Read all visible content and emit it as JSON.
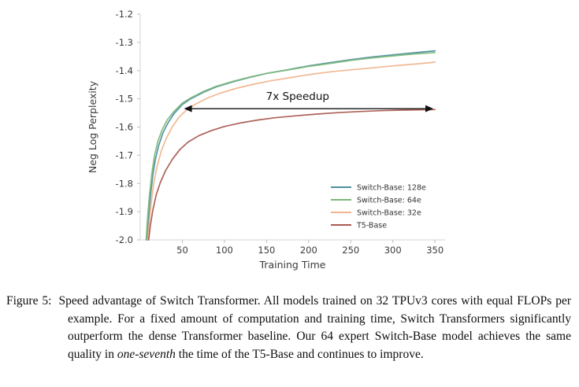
{
  "figure": {
    "caption_label": "Figure 5:",
    "caption_before": "Speed advantage of Switch Transformer. All models trained on 32 TPUv3 cores with equal FLOPs per example. For a fixed amount of computation and training time, Switch Transformers significantly outperform the dense Transformer baseline. Our 64 expert Switch-Base model achieves the same quality in ",
    "caption_italic": "one-seventh",
    "caption_after": " the time of the T5-Base and continues to improve."
  },
  "chart_data": {
    "type": "line",
    "title": "",
    "xlabel": "Training Time",
    "ylabel": "Neg Log Perplexity",
    "xlim": [
      0,
      362
    ],
    "ylim": [
      -2.0,
      -1.2
    ],
    "xticks": [
      50,
      100,
      150,
      200,
      250,
      300,
      350
    ],
    "yticks": [
      -2.0,
      -1.9,
      -1.8,
      -1.7,
      -1.6,
      -1.5,
      -1.4,
      -1.3,
      -1.2
    ],
    "grid": false,
    "legend_position": "lower right",
    "annotation": {
      "text": "7x Speedup",
      "x1": 52,
      "x2": 348,
      "y": -1.535
    },
    "series": [
      {
        "name": "Switch-Base: 128e",
        "color": "#4d8fa0",
        "points": [
          [
            8,
            -2.0
          ],
          [
            10,
            -1.92
          ],
          [
            12,
            -1.85
          ],
          [
            15,
            -1.77
          ],
          [
            18,
            -1.715
          ],
          [
            22,
            -1.665
          ],
          [
            27,
            -1.62
          ],
          [
            33,
            -1.585
          ],
          [
            40,
            -1.553
          ],
          [
            50,
            -1.52
          ],
          [
            60,
            -1.5
          ],
          [
            75,
            -1.477
          ],
          [
            90,
            -1.458
          ],
          [
            110,
            -1.44
          ],
          [
            130,
            -1.424
          ],
          [
            150,
            -1.41
          ],
          [
            175,
            -1.397
          ],
          [
            200,
            -1.383
          ],
          [
            225,
            -1.372
          ],
          [
            250,
            -1.361
          ],
          [
            275,
            -1.352
          ],
          [
            300,
            -1.344
          ],
          [
            325,
            -1.337
          ],
          [
            350,
            -1.33
          ]
        ]
      },
      {
        "name": "Switch-Base: 64e",
        "color": "#7db87a",
        "points": [
          [
            7,
            -2.0
          ],
          [
            9,
            -1.91
          ],
          [
            11,
            -1.84
          ],
          [
            14,
            -1.76
          ],
          [
            17,
            -1.7
          ],
          [
            21,
            -1.65
          ],
          [
            26,
            -1.61
          ],
          [
            32,
            -1.575
          ],
          [
            40,
            -1.545
          ],
          [
            50,
            -1.515
          ],
          [
            60,
            -1.497
          ],
          [
            75,
            -1.474
          ],
          [
            90,
            -1.456
          ],
          [
            110,
            -1.438
          ],
          [
            130,
            -1.423
          ],
          [
            150,
            -1.41
          ],
          [
            175,
            -1.398
          ],
          [
            200,
            -1.385
          ],
          [
            225,
            -1.375
          ],
          [
            250,
            -1.364
          ],
          [
            275,
            -1.355
          ],
          [
            300,
            -1.348
          ],
          [
            325,
            -1.341
          ],
          [
            350,
            -1.336
          ]
        ]
      },
      {
        "name": "Switch-Base: 32e",
        "color": "#f1b48e",
        "points": [
          [
            9,
            -2.0
          ],
          [
            11,
            -1.93
          ],
          [
            13,
            -1.87
          ],
          [
            16,
            -1.8
          ],
          [
            20,
            -1.74
          ],
          [
            25,
            -1.685
          ],
          [
            31,
            -1.64
          ],
          [
            38,
            -1.6
          ],
          [
            46,
            -1.565
          ],
          [
            55,
            -1.54
          ],
          [
            65,
            -1.52
          ],
          [
            80,
            -1.497
          ],
          [
            95,
            -1.48
          ],
          [
            115,
            -1.462
          ],
          [
            135,
            -1.448
          ],
          [
            155,
            -1.436
          ],
          [
            180,
            -1.424
          ],
          [
            205,
            -1.412
          ],
          [
            230,
            -1.403
          ],
          [
            255,
            -1.396
          ],
          [
            280,
            -1.389
          ],
          [
            305,
            -1.382
          ],
          [
            330,
            -1.376
          ],
          [
            350,
            -1.37
          ]
        ]
      },
      {
        "name": "T5-Base",
        "color": "#aa5a52",
        "points": [
          [
            10,
            -2.0
          ],
          [
            12,
            -1.95
          ],
          [
            15,
            -1.895
          ],
          [
            19,
            -1.84
          ],
          [
            24,
            -1.795
          ],
          [
            30,
            -1.755
          ],
          [
            38,
            -1.715
          ],
          [
            47,
            -1.68
          ],
          [
            57,
            -1.653
          ],
          [
            70,
            -1.63
          ],
          [
            85,
            -1.612
          ],
          [
            100,
            -1.598
          ],
          [
            120,
            -1.585
          ],
          [
            140,
            -1.575
          ],
          [
            160,
            -1.567
          ],
          [
            185,
            -1.56
          ],
          [
            210,
            -1.554
          ],
          [
            235,
            -1.549
          ],
          [
            260,
            -1.545
          ],
          [
            285,
            -1.542
          ],
          [
            310,
            -1.54
          ],
          [
            330,
            -1.539
          ],
          [
            350,
            -1.538
          ]
        ]
      }
    ],
    "style": {
      "tick_color": "#3a3a3a",
      "spine_color": "#d6d6d6",
      "annotation_color": "#111111",
      "legend_text_color": "#333333"
    }
  }
}
